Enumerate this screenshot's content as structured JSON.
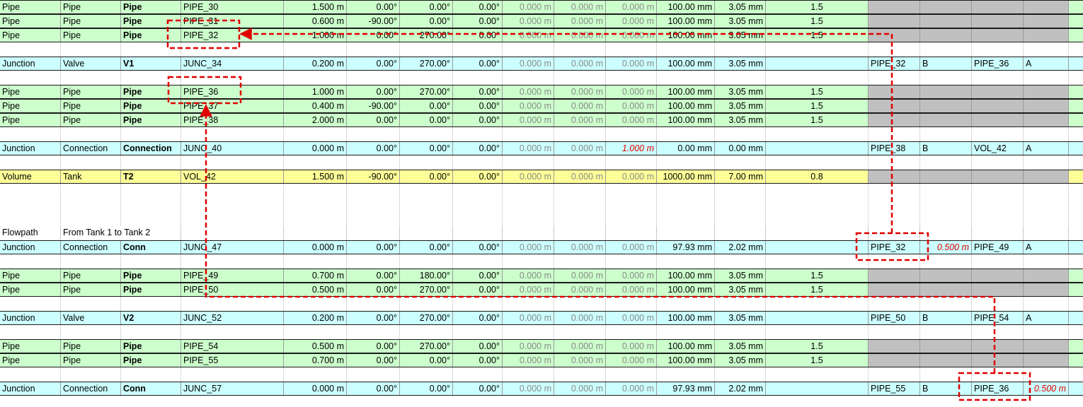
{
  "colors": {
    "pipe": "#ccffcc",
    "junction": "#ccffff",
    "volume": "#ffff99",
    "annotation": "#e00000",
    "greyed": "#c0c0c0"
  },
  "rows": [
    {
      "kind": "pipe",
      "cells": [
        "Pipe",
        "Pipe",
        "Pipe",
        "PIPE_30",
        "1.500 m",
        "0.00°",
        "0.00°",
        "0.00°",
        "0.000 m",
        "0.000 m",
        "0.000 m",
        "100.00 mm",
        "3.05 mm",
        "1.5",
        "",
        "",
        "",
        "",
        ""
      ]
    },
    {
      "kind": "pipe",
      "cells": [
        "Pipe",
        "Pipe",
        "Pipe",
        "PIPE_31",
        "0.600 m",
        "-90.00°",
        "0.00°",
        "0.00°",
        "0.000 m",
        "0.000 m",
        "0.000 m",
        "100.00 mm",
        "3.05 mm",
        "1.5",
        "",
        "",
        "",
        "",
        ""
      ]
    },
    {
      "kind": "pipe",
      "cells": [
        "Pipe",
        "Pipe",
        "Pipe",
        "PIPE_32",
        "1.000 m",
        "0.00°",
        "270.00°",
        "0.00°",
        "0.000 m",
        "0.000 m",
        "0.000 m",
        "100.00 mm",
        "3.05 mm",
        "1.5",
        "",
        "",
        "",
        "",
        ""
      ]
    },
    {
      "kind": "empty"
    },
    {
      "kind": "junction",
      "cells": [
        "Junction",
        "Valve",
        "V1",
        "JUNC_34",
        "0.200 m",
        "0.00°",
        "270.00°",
        "0.00°",
        "0.000 m",
        "0.000 m",
        "0.000 m",
        "100.00 mm",
        "3.05 mm",
        "",
        "PIPE_32",
        "B",
        "",
        "PIPE_36",
        "A"
      ]
    },
    {
      "kind": "empty"
    },
    {
      "kind": "pipe",
      "cells": [
        "Pipe",
        "Pipe",
        "Pipe",
        "PIPE_36",
        "1.000 m",
        "0.00°",
        "270.00°",
        "0.00°",
        "0.000 m",
        "0.000 m",
        "0.000 m",
        "100.00 mm",
        "3.05 mm",
        "1.5",
        "",
        "",
        "",
        "",
        ""
      ]
    },
    {
      "kind": "pipe",
      "cells": [
        "Pipe",
        "Pipe",
        "Pipe",
        "PIPE_37",
        "0.400 m",
        "-90.00°",
        "0.00°",
        "0.00°",
        "0.000 m",
        "0.000 m",
        "0.000 m",
        "100.00 mm",
        "3.05 mm",
        "1.5",
        "",
        "",
        "",
        "",
        ""
      ]
    },
    {
      "kind": "pipe",
      "cells": [
        "Pipe",
        "Pipe",
        "Pipe",
        "PIPE_38",
        "2.000 m",
        "0.00°",
        "0.00°",
        "0.00°",
        "0.000 m",
        "0.000 m",
        "0.000 m",
        "100.00 mm",
        "3.05 mm",
        "1.5",
        "",
        "",
        "",
        "",
        ""
      ]
    },
    {
      "kind": "empty"
    },
    {
      "kind": "junction",
      "cells": [
        "Junction",
        "Connection",
        "Connection",
        "JUNC_40",
        "0.000 m",
        "0.00°",
        "0.00°",
        "0.00°",
        "0.000 m",
        "0.000 m",
        "1.000 m",
        "0.00 mm",
        "0.00 mm",
        "",
        "PIPE_38",
        "B",
        "",
        "VOL_42",
        "A"
      ]
    },
    {
      "kind": "empty"
    },
    {
      "kind": "volume",
      "cells": [
        "Volume",
        "Tank",
        "T2",
        "VOL_42",
        "1.500 m",
        "-90.00°",
        "0.00°",
        "0.00°",
        "0.000 m",
        "0.000 m",
        "0.000 m",
        "1000.00 mm",
        "7.00 mm",
        "0.8",
        "",
        "",
        "",
        "",
        ""
      ]
    },
    {
      "kind": "empty"
    },
    {
      "kind": "empty"
    },
    {
      "kind": "empty"
    },
    {
      "kind": "label",
      "cells": [
        "Flowpath",
        "From Tank 1 to Tank 2"
      ]
    },
    {
      "kind": "junction",
      "cells": [
        "Junction",
        "Connection",
        "Conn",
        "JUNC_47",
        "0.000 m",
        "0.00°",
        "0.00°",
        "0.00°",
        "0.000 m",
        "0.000 m",
        "0.000 m",
        "97.93 mm",
        "2.02 mm",
        "",
        "PIPE_32",
        "",
        "0.500 m",
        "PIPE_49",
        "A"
      ]
    },
    {
      "kind": "empty"
    },
    {
      "kind": "pipe",
      "cells": [
        "Pipe",
        "Pipe",
        "Pipe",
        "PIPE_49",
        "0.700 m",
        "0.00°",
        "180.00°",
        "0.00°",
        "0.000 m",
        "0.000 m",
        "0.000 m",
        "100.00 mm",
        "3.05 mm",
        "1.5",
        "",
        "",
        "",
        "",
        ""
      ]
    },
    {
      "kind": "pipe",
      "cells": [
        "Pipe",
        "Pipe",
        "Pipe",
        "PIPE_50",
        "0.500 m",
        "0.00°",
        "270.00°",
        "0.00°",
        "0.000 m",
        "0.000 m",
        "0.000 m",
        "100.00 mm",
        "3.05 mm",
        "1.5",
        "",
        "",
        "",
        "",
        ""
      ]
    },
    {
      "kind": "empty"
    },
    {
      "kind": "junction",
      "cells": [
        "Junction",
        "Valve",
        "V2",
        "JUNC_52",
        "0.200 m",
        "0.00°",
        "270.00°",
        "0.00°",
        "0.000 m",
        "0.000 m",
        "0.000 m",
        "100.00 mm",
        "3.05 mm",
        "",
        "PIPE_50",
        "B",
        "",
        "PIPE_54",
        "A"
      ]
    },
    {
      "kind": "empty"
    },
    {
      "kind": "pipe",
      "cells": [
        "Pipe",
        "Pipe",
        "Pipe",
        "PIPE_54",
        "0.500 m",
        "0.00°",
        "270.00°",
        "0.00°",
        "0.000 m",
        "0.000 m",
        "0.000 m",
        "100.00 mm",
        "3.05 mm",
        "1.5",
        "",
        "",
        "",
        "",
        ""
      ]
    },
    {
      "kind": "pipe",
      "cells": [
        "Pipe",
        "Pipe",
        "Pipe",
        "PIPE_55",
        "0.700 m",
        "0.00°",
        "0.00°",
        "0.00°",
        "0.000 m",
        "0.000 m",
        "0.000 m",
        "100.00 mm",
        "3.05 mm",
        "1.5",
        "",
        "",
        "",
        "",
        ""
      ]
    },
    {
      "kind": "empty"
    },
    {
      "kind": "junction",
      "cells": [
        "Junction",
        "Connection",
        "Conn",
        "JUNC_57",
        "0.000 m",
        "0.00°",
        "0.00°",
        "0.00°",
        "0.000 m",
        "0.000 m",
        "0.000 m",
        "97.93 mm",
        "2.02 mm",
        "",
        "PIPE_55",
        "B",
        "",
        "PIPE_36",
        "0.500 m"
      ]
    }
  ]
}
